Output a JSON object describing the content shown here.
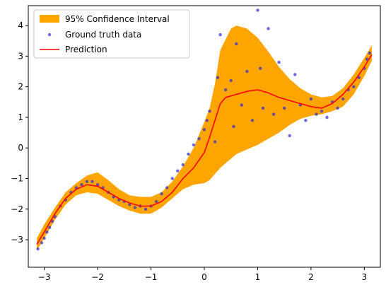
{
  "chart_data": {
    "type": "scatter",
    "title": "",
    "xlabel": "",
    "ylabel": "",
    "xlim": [
      -3.3,
      3.3
    ],
    "ylim": [
      -3.9,
      4.65
    ],
    "grid": false,
    "legend_position": "top-left",
    "xticks": [
      -3,
      -2,
      -1,
      0,
      1,
      2,
      3
    ],
    "yticks": [
      -3,
      -2,
      -1,
      0,
      1,
      2,
      3,
      4
    ],
    "series": [
      {
        "name": "95% Confidence Interval",
        "kind": "band",
        "color": "#ffa500",
        "x": [
          -3.14,
          -3.0,
          -2.8,
          -2.6,
          -2.4,
          -2.2,
          -2.0,
          -1.8,
          -1.6,
          -1.4,
          -1.2,
          -1.0,
          -0.8,
          -0.6,
          -0.4,
          -0.2,
          0.0,
          0.1,
          0.2,
          0.3,
          0.5,
          0.6,
          0.8,
          1.0,
          1.2,
          1.4,
          1.6,
          1.8,
          2.0,
          2.2,
          2.4,
          2.6,
          2.8,
          3.0,
          3.14
        ],
        "lower": [
          -3.35,
          -2.95,
          -2.35,
          -1.85,
          -1.55,
          -1.45,
          -1.5,
          -1.7,
          -1.9,
          -2.05,
          -2.15,
          -2.15,
          -1.95,
          -1.65,
          -1.35,
          -1.2,
          -1.15,
          -1.05,
          -0.85,
          -0.65,
          -0.35,
          -0.2,
          -0.05,
          0.1,
          0.3,
          0.5,
          0.75,
          0.95,
          1.05,
          1.1,
          1.2,
          1.35,
          1.75,
          2.35,
          2.85
        ],
        "upper": [
          -2.95,
          -2.5,
          -1.95,
          -1.45,
          -1.15,
          -0.9,
          -0.8,
          -1.05,
          -1.35,
          -1.55,
          -1.6,
          -1.6,
          -1.45,
          -1.1,
          -0.6,
          0.0,
          0.85,
          1.3,
          2.1,
          3.2,
          3.9,
          4.0,
          3.9,
          3.6,
          3.15,
          2.65,
          2.25,
          1.95,
          1.75,
          1.65,
          1.7,
          1.95,
          2.4,
          2.95,
          3.35
        ]
      },
      {
        "name": "Ground truth data",
        "kind": "points",
        "color": "#2a2ad6",
        "x": [
          -3.12,
          -3.05,
          -3.0,
          -2.95,
          -2.9,
          -2.85,
          -2.8,
          -2.7,
          -2.6,
          -2.5,
          -2.4,
          -2.3,
          -2.2,
          -2.1,
          -2.0,
          -1.9,
          -1.8,
          -1.7,
          -1.6,
          -1.5,
          -1.4,
          -1.3,
          -1.2,
          -1.1,
          -1.0,
          -0.9,
          -0.8,
          -0.7,
          -0.6,
          -0.5,
          -0.4,
          -0.3,
          -0.2,
          -0.1,
          0.0,
          0.05,
          0.1,
          0.2,
          0.25,
          0.3,
          0.4,
          0.5,
          0.55,
          0.6,
          0.7,
          0.8,
          0.9,
          1.0,
          1.05,
          1.1,
          1.2,
          1.3,
          1.4,
          1.5,
          1.6,
          1.7,
          1.8,
          1.9,
          2.0,
          2.1,
          2.2,
          2.3,
          2.4,
          2.5,
          2.6,
          2.7,
          2.8,
          2.9,
          3.0,
          3.05,
          3.1
        ],
        "y": [
          -3.3,
          -3.1,
          -2.95,
          -2.75,
          -2.6,
          -2.4,
          -2.25,
          -1.9,
          -1.7,
          -1.45,
          -1.3,
          -1.2,
          -1.1,
          -1.1,
          -1.2,
          -1.3,
          -1.45,
          -1.6,
          -1.7,
          -1.75,
          -1.85,
          -1.95,
          -1.9,
          -2.0,
          -1.9,
          -1.75,
          -1.5,
          -1.3,
          -1.0,
          -0.75,
          -0.55,
          -0.2,
          0.1,
          0.3,
          0.6,
          0.9,
          1.2,
          0.2,
          2.3,
          3.7,
          1.9,
          2.2,
          0.7,
          3.4,
          1.4,
          2.5,
          0.9,
          4.5,
          2.6,
          1.3,
          3.9,
          1.1,
          2.8,
          1.3,
          0.4,
          2.4,
          1.4,
          0.9,
          1.6,
          1.1,
          1.2,
          1.0,
          1.5,
          1.3,
          1.6,
          1.9,
          2.0,
          2.3,
          2.6,
          2.9,
          3.1
        ]
      },
      {
        "name": "Prediction",
        "kind": "line",
        "color": "#ff0000",
        "x": [
          -3.14,
          -3.0,
          -2.8,
          -2.6,
          -2.4,
          -2.2,
          -2.0,
          -1.8,
          -1.6,
          -1.4,
          -1.2,
          -1.0,
          -0.8,
          -0.6,
          -0.4,
          -0.2,
          0.0,
          0.1,
          0.2,
          0.3,
          0.4,
          0.6,
          0.8,
          1.0,
          1.2,
          1.4,
          1.6,
          1.8,
          2.0,
          2.2,
          2.4,
          2.6,
          2.8,
          3.0,
          3.14
        ],
        "y": [
          -3.15,
          -2.75,
          -2.15,
          -1.65,
          -1.35,
          -1.2,
          -1.25,
          -1.45,
          -1.65,
          -1.8,
          -1.9,
          -1.9,
          -1.75,
          -1.45,
          -1.0,
          -0.65,
          -0.15,
          0.35,
          0.9,
          1.45,
          1.65,
          1.75,
          1.85,
          1.9,
          1.8,
          1.65,
          1.55,
          1.45,
          1.35,
          1.3,
          1.45,
          1.75,
          2.15,
          2.65,
          3.05
        ]
      }
    ]
  }
}
